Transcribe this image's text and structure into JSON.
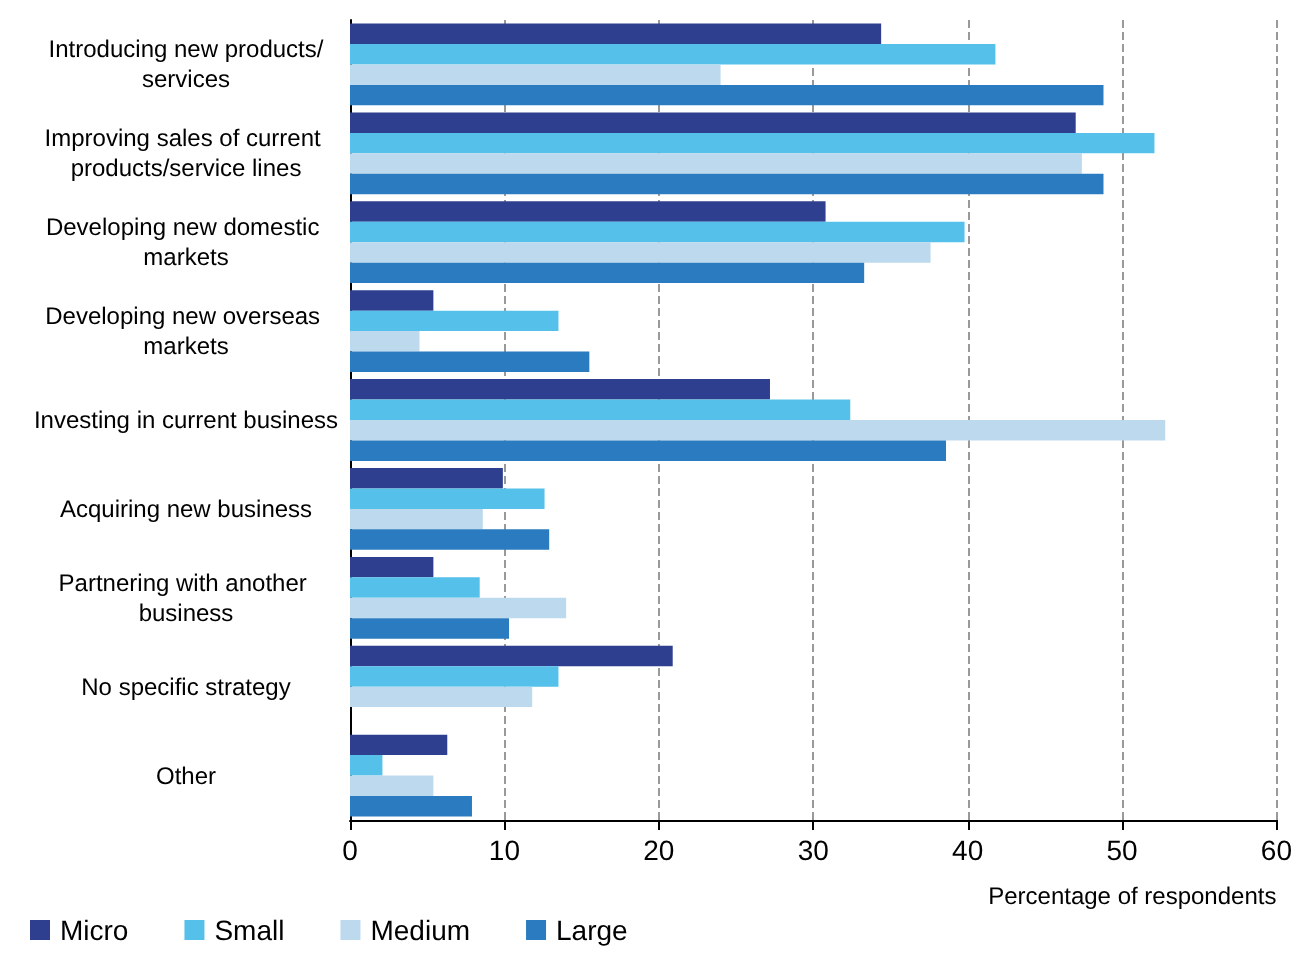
{
  "chart_data": {
    "type": "bar",
    "orientation": "horizontal",
    "xlabel": "Percentage of respondents",
    "categories": [
      "Introducing new products/services",
      "Improving sales of current products/service lines",
      "Developing new domestic markets",
      "Developing new overseas markets",
      "Investing in current business",
      "Acquiring new business",
      "Partnering with another business",
      "No specific strategy",
      "Other"
    ],
    "series": [
      {
        "name": "Micro",
        "color": "#2e3f8f",
        "values": [
          34.4,
          47,
          30.8,
          5.4,
          27.2,
          9.9,
          5.4,
          20.9,
          6.3
        ]
      },
      {
        "name": "Small",
        "color": "#55c1ea",
        "values": [
          41.8,
          52.1,
          39.8,
          13.5,
          32.4,
          12.6,
          8.4,
          13.5,
          2.1
        ]
      },
      {
        "name": "Medium",
        "color": "#bcd9ee",
        "values": [
          24,
          47.4,
          37.6,
          4.5,
          52.8,
          8.6,
          14,
          11.8,
          5.4
        ]
      },
      {
        "name": "Large",
        "color": "#2a7bbf",
        "values": [
          48.8,
          48.8,
          33.3,
          15.5,
          38.6,
          12.9,
          10.3,
          null,
          7.9
        ]
      }
    ],
    "xlim": [
      0,
      60
    ],
    "xticks": [
      0,
      10,
      20,
      30,
      40,
      50,
      60
    ],
    "grid": "x",
    "legend": "bottom left"
  }
}
